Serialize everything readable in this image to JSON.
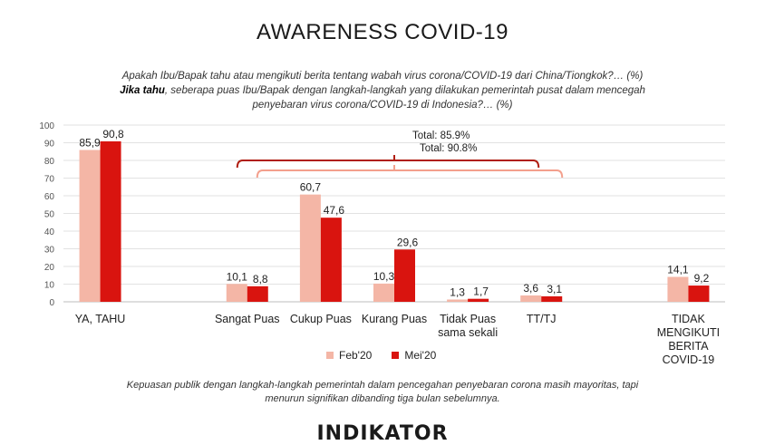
{
  "title": "AWARENESS COVID-19",
  "question": {
    "line1": "Apakah Ibu/Bapak tahu atau mengikuti berita tentang wabah virus corona/COVID-19 dari China/Tiongkok?… (%)",
    "line2_bold": "Jika tahu",
    "line2_rest": ", seberapa puas Ibu/Bapak dengan langkah-langkah yang dilakukan pemerintah pusat dalam mencegah",
    "line3": "penyebaran virus corona/COVID-19 di Indonesia?… (%)"
  },
  "legend": {
    "feb": "Feb'20",
    "mei": "Mei'20"
  },
  "footnote": {
    "line1": "Kepuasan publik dengan langkah-langkah pemerintah dalam pencegahan penyebaran corona masih mayoritas, tapi",
    "line2": "menurun signifikan dibanding tiga bulan sebelumnya."
  },
  "logo": "INDIKATOR",
  "chart_data": {
    "type": "bar",
    "ylim": [
      0,
      100
    ],
    "yticks": [
      "0",
      "10",
      "20",
      "30",
      "40",
      "50",
      "60",
      "70",
      "80",
      "90",
      "100"
    ],
    "grid": true,
    "legend_position": "bottom",
    "colors": {
      "feb": "#f4b6a6",
      "mei": "#d9140f",
      "bracket_feb": "#b01e12",
      "bracket_mei": "#f3a08d"
    },
    "categories": [
      {
        "lines": [
          "YA, TAHU"
        ],
        "feb": 85.9,
        "mei": 90.8,
        "feb_label": "85,9",
        "mei_label": "90,8"
      },
      {
        "lines": [],
        "feb": null,
        "mei": null,
        "feb_label": "",
        "mei_label": ""
      },
      {
        "lines": [
          "Sangat Puas"
        ],
        "feb": 10.1,
        "mei": 8.8,
        "feb_label": "10,1",
        "mei_label": "8,8"
      },
      {
        "lines": [
          "Cukup Puas"
        ],
        "feb": 60.7,
        "mei": 47.6,
        "feb_label": "60,7",
        "mei_label": "47,6"
      },
      {
        "lines": [
          "Kurang Puas"
        ],
        "feb": 10.3,
        "mei": 29.6,
        "feb_label": "10,3",
        "mei_label": "29,6"
      },
      {
        "lines": [
          "Tidak Puas",
          "sama sekali"
        ],
        "feb": 1.3,
        "mei": 1.7,
        "feb_label": "1,3",
        "mei_label": "1,7"
      },
      {
        "lines": [
          "TT/TJ"
        ],
        "feb": 3.6,
        "mei": 3.1,
        "feb_label": "3,6",
        "mei_label": "3,1"
      },
      {
        "lines": [],
        "feb": null,
        "mei": null,
        "feb_label": "",
        "mei_label": ""
      },
      {
        "lines": [
          "TIDAK",
          "MENGIKUTI",
          "BERITA",
          "COVID-19"
        ],
        "feb": 14.1,
        "mei": 9.2,
        "feb_label": "14,1",
        "mei_label": "9,2"
      }
    ],
    "annotations": [
      {
        "text": "Total: 85.9%",
        "series": "feb"
      },
      {
        "text": "Total: 90.8%",
        "series": "mei"
      }
    ]
  }
}
